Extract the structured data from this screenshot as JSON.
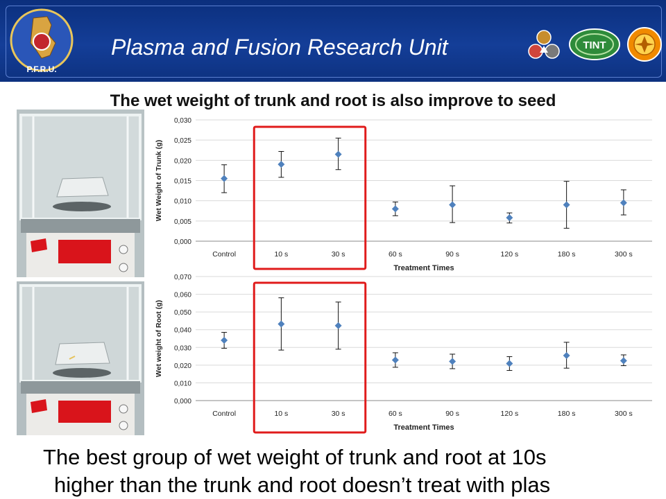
{
  "header": {
    "title": "Plasma and Fusion Research Unit",
    "logo_left_text": "P.F.R.U.",
    "logo_right_2_text": "TINT"
  },
  "slide_title": "The  wet weight of trunk and root is also improve to seed",
  "footnote": {
    "line1": "The best group of wet weight of trunk and root at 10s",
    "line2": "higher than the trunk and root doesn’t  treat with plas"
  },
  "colors": {
    "marker": "#4f81bd",
    "highlight": "#e01b1b",
    "header": "#143e98"
  },
  "chart_data": [
    {
      "type": "scatter",
      "categories": [
        "Control",
        "10 s",
        "30 s",
        "60 s",
        "90 s",
        "120 s",
        "180 s",
        "300 s"
      ],
      "values": [
        0.0155,
        0.019,
        0.0215,
        0.008,
        0.009,
        0.0058,
        0.009,
        0.0095
      ],
      "error_low": [
        0.012,
        0.0158,
        0.0177,
        0.0063,
        0.0046,
        0.0045,
        0.0032,
        0.0065
      ],
      "error_high": [
        0.0189,
        0.0222,
        0.0255,
        0.0097,
        0.0137,
        0.007,
        0.0148,
        0.0127
      ],
      "ylim": [
        0,
        0.03
      ],
      "yticks": [
        "0,000",
        "0,005",
        "0,010",
        "0,015",
        "0,020",
        "0,025",
        "0,030"
      ],
      "xlabel": "Treatment Times",
      "ylabel": "Wet  Weight of Trunk (g)",
      "highlight_categories": [
        "10 s",
        "30 s"
      ],
      "grid": true
    },
    {
      "type": "scatter",
      "categories": [
        "Control",
        "10 s",
        "30 s",
        "60 s",
        "90 s",
        "120 s",
        "180 s",
        "300 s"
      ],
      "values": [
        0.034,
        0.0432,
        0.0423,
        0.0229,
        0.0221,
        0.0209,
        0.0254,
        0.0225
      ],
      "error_low": [
        0.0295,
        0.0285,
        0.029,
        0.0188,
        0.018,
        0.017,
        0.0183,
        0.0197
      ],
      "error_high": [
        0.0385,
        0.058,
        0.0556,
        0.027,
        0.0262,
        0.0248,
        0.0329,
        0.0258
      ],
      "ylim": [
        0,
        0.07
      ],
      "yticks": [
        "0,000",
        "0,010",
        "0,020",
        "0,030",
        "0,040",
        "0,050",
        "0,060",
        "0,070"
      ],
      "xlabel": "Treatment Times",
      "ylabel": "Wet weight of Root (g)",
      "highlight_categories": [
        "10 s",
        "30 s"
      ],
      "grid": true
    }
  ]
}
